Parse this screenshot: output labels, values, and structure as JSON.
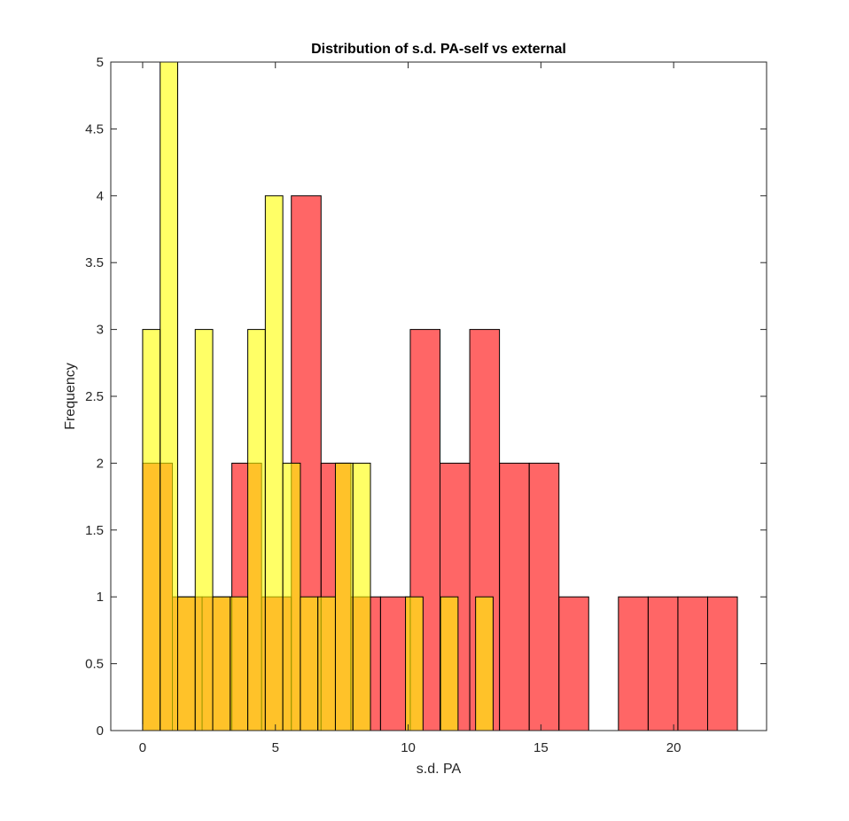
{
  "chart_data": {
    "type": "bar",
    "title": "Distribution of s.d. PA-self vs external",
    "xlabel": "s.d. PA",
    "ylabel": "Frequency",
    "xlim": [
      -1.2,
      23.5
    ],
    "ylim": [
      0,
      5
    ],
    "xticks": [
      0,
      5,
      10,
      15,
      20
    ],
    "yticks": [
      0,
      0.5,
      1,
      1.5,
      2,
      2.5,
      3,
      3.5,
      4,
      4.5,
      5
    ],
    "xtick_labels": [
      "0",
      "5",
      "10",
      "15",
      "20"
    ],
    "ytick_labels": [
      "0",
      "0.5",
      "1",
      "1.5",
      "2",
      "2.5",
      "3",
      "3.5",
      "4",
      "4.5",
      "5"
    ],
    "grid": false,
    "legend": "none",
    "series": [
      {
        "color": "#ff0000",
        "opacity": 0.6,
        "edges": [
          0,
          1.12,
          2.24,
          3.36,
          4.48,
          5.6,
          6.72,
          7.84,
          8.96,
          10.08,
          11.2,
          12.32,
          13.44,
          14.56,
          15.68,
          16.8,
          17.92,
          19.04,
          20.16,
          21.28,
          22.4
        ],
        "values": [
          2,
          1,
          1,
          2,
          1,
          4,
          2,
          1,
          1,
          3,
          2,
          3,
          2,
          2,
          1,
          0,
          1,
          1,
          1,
          1
        ]
      },
      {
        "color": "#ffff00",
        "opacity": 0.6,
        "edges": [
          0,
          0.66,
          1.32,
          1.98,
          2.64,
          3.3,
          3.96,
          4.62,
          5.28,
          5.94,
          6.6,
          7.26,
          7.92,
          8.58,
          9.24,
          9.9,
          10.56,
          11.22,
          11.88,
          12.54,
          13.2
        ],
        "values": [
          3,
          5,
          1,
          3,
          1,
          1,
          3,
          4,
          2,
          1,
          1,
          2,
          2,
          0,
          0,
          1,
          0,
          1,
          0,
          1
        ]
      }
    ]
  }
}
